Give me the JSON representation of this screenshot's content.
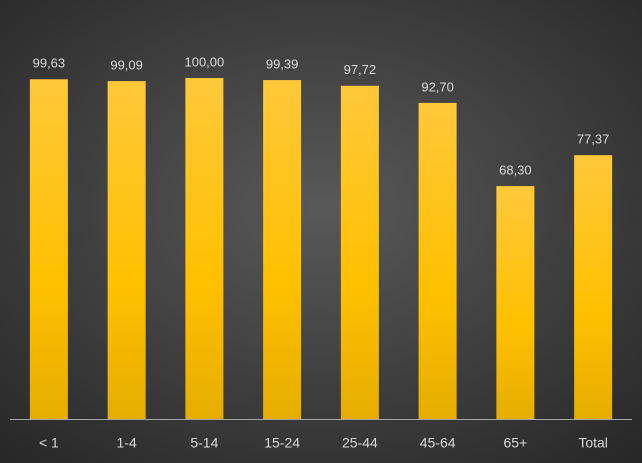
{
  "chart_data": {
    "type": "bar",
    "categories": [
      "< 1",
      "1-4",
      "5-14",
      "15-24",
      "25-44",
      "45-64",
      "65+",
      "Total"
    ],
    "values": [
      99.63,
      99.09,
      100.0,
      99.39,
      97.72,
      92.7,
      68.3,
      77.37
    ],
    "value_labels": [
      "99,63",
      "99,09",
      "100,00",
      "99,39",
      "97,72",
      "92,70",
      "68,30",
      "77,37"
    ],
    "color": "#ffc000"
  }
}
